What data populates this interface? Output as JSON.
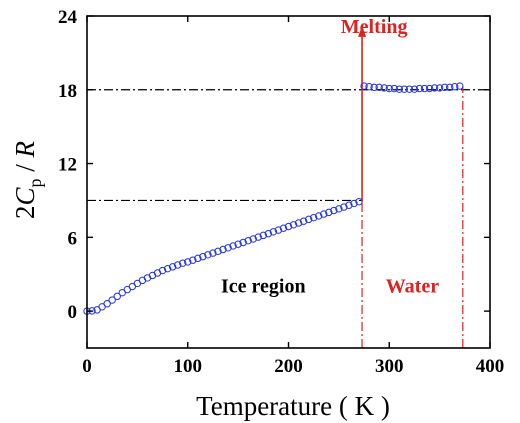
{
  "chart_data": {
    "type": "scatter",
    "xlabel": "Temperature ( K )",
    "ylabel": [
      "2",
      "C",
      "p",
      " / ",
      "R"
    ],
    "xlim": [
      0,
      400
    ],
    "xticks": [
      0,
      100,
      200,
      300,
      400
    ],
    "ylim": [
      -3,
      24
    ],
    "yticks": [
      0,
      6,
      12,
      18,
      24
    ],
    "color": "#2233dd",
    "series": [
      {
        "x": [
          0,
          5,
          10,
          15,
          20,
          25,
          30,
          35,
          40,
          45,
          50,
          55,
          60,
          65,
          70,
          75,
          80,
          85,
          90,
          95,
          100,
          105,
          110,
          115,
          120,
          125,
          130,
          135,
          140,
          145,
          150,
          155,
          160,
          165,
          170,
          175,
          180,
          185,
          190,
          195,
          200,
          205,
          210,
          215,
          220,
          225,
          230,
          235,
          240,
          245,
          250,
          255,
          260,
          265,
          270
        ],
        "values": [
          0,
          0.02,
          0.1,
          0.35,
          0.6,
          0.9,
          1.2,
          1.5,
          1.75,
          2.0,
          2.25,
          2.5,
          2.7,
          2.9,
          3.1,
          3.3,
          3.45,
          3.6,
          3.75,
          3.9,
          4.0,
          4.14,
          4.29,
          4.43,
          4.58,
          4.72,
          4.86,
          5.01,
          5.15,
          5.3,
          5.44,
          5.58,
          5.73,
          5.87,
          6.02,
          6.16,
          6.3,
          6.45,
          6.59,
          6.74,
          6.88,
          7.02,
          7.17,
          7.31,
          7.46,
          7.6,
          7.74,
          7.89,
          8.03,
          8.18,
          8.32,
          8.46,
          8.61,
          8.75,
          8.9
        ]
      },
      {
        "x": [
          275,
          280,
          285,
          290,
          295,
          300,
          305,
          310,
          315,
          320,
          325,
          330,
          335,
          340,
          345,
          350,
          355,
          360,
          365,
          370
        ],
        "values": [
          18.3,
          18.25,
          18.2,
          18.2,
          18.15,
          18.1,
          18.1,
          18.05,
          18.05,
          18.05,
          18.05,
          18.1,
          18.1,
          18.1,
          18.15,
          18.15,
          18.2,
          18.2,
          18.25,
          18.3
        ]
      }
    ],
    "hlines": [
      {
        "y": 18,
        "x0": 0,
        "x1": 400
      },
      {
        "y": 9,
        "x0": 0,
        "x1": 273
      }
    ],
    "vlines": [
      {
        "x": 273,
        "y1": 8.9
      },
      {
        "x": 373,
        "y1": 18.3
      }
    ],
    "arrow": {
      "x": 273,
      "y0": 8.9,
      "y1": 23.2,
      "color": "#dd2222"
    },
    "annotations": [
      {
        "text": "Melting",
        "x": 285,
        "y": 22.6,
        "color": "#dd2222"
      },
      {
        "text": "Ice region",
        "x": 175,
        "y": 1.5,
        "color": "#000000"
      },
      {
        "text": "Water",
        "x": 323,
        "y": 1.5,
        "color": "#dd2222"
      }
    ]
  }
}
